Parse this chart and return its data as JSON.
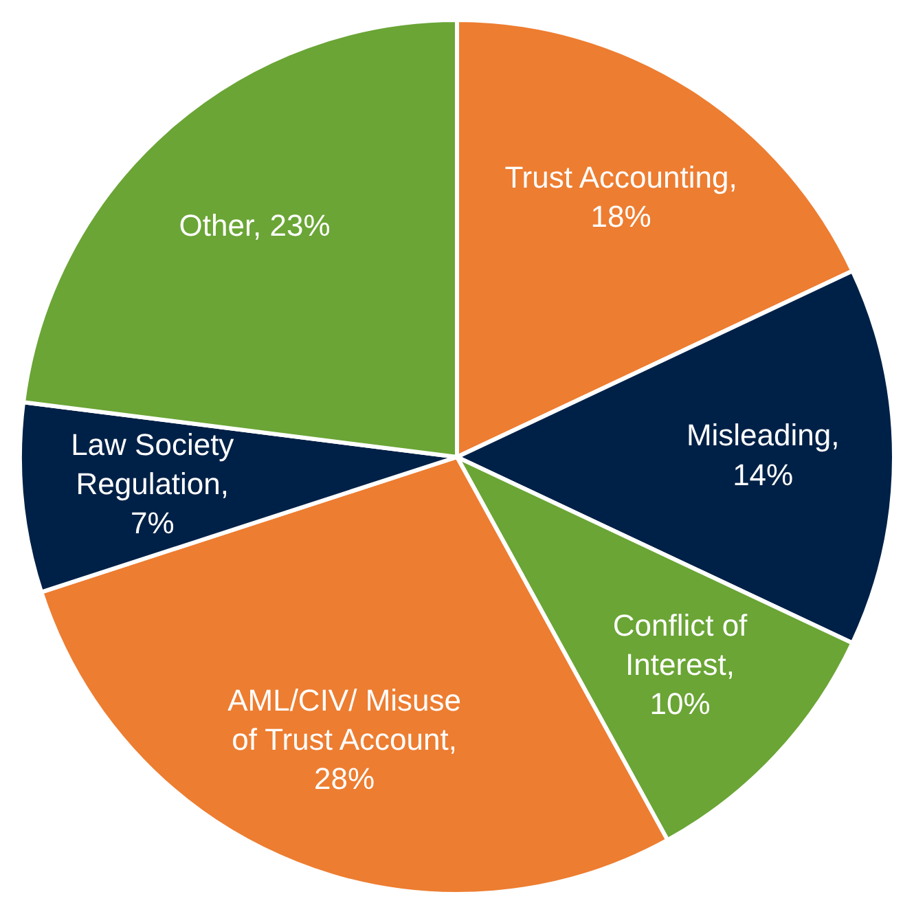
{
  "chart_data": {
    "type": "pie",
    "categories": [
      "Trust Accounting, 18%",
      "Misleading, 14%",
      "Conflict of Interest, 10%",
      "AML/CIV/ Misuse of Trust Account, 28%",
      "Law Society Regulation, 7%",
      "Other, 23%"
    ],
    "values": [
      18,
      14,
      10,
      28,
      7,
      23
    ],
    "colors": [
      "#ed7d31",
      "#002147",
      "#6aa535",
      "#ed7d31",
      "#002147",
      "#6aa535"
    ]
  }
}
